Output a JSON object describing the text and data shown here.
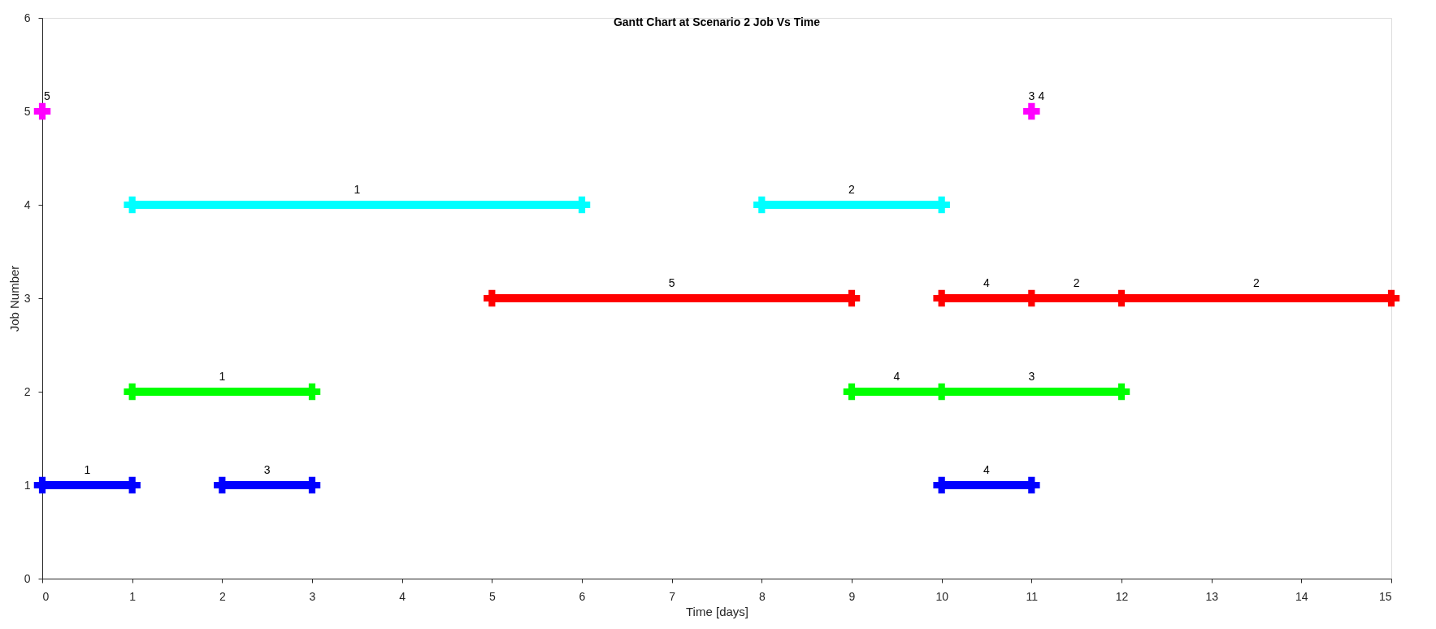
{
  "chart_data": {
    "type": "line",
    "title": "Gantt Chart at Scenario 2 Job Vs Time",
    "xlabel": "Time [days]",
    "ylabel": "Job Number",
    "xlim": [
      0,
      15
    ],
    "xticks": [
      0,
      1,
      2,
      3,
      4,
      5,
      6,
      7,
      8,
      9,
      10,
      11,
      12,
      13,
      14,
      15
    ],
    "ylim": [
      0,
      6
    ],
    "yticks": [
      0,
      1,
      2,
      3,
      4,
      5,
      6
    ],
    "grid": false,
    "marker": "cross",
    "line_style": "solid",
    "series": [
      {
        "color": "#0000ff",
        "x": [
          0,
          1
        ],
        "values": [
          1,
          1
        ]
      },
      {
        "color": "#0000ff",
        "x": [
          2,
          3
        ],
        "values": [
          1,
          1
        ]
      },
      {
        "color": "#0000ff",
        "x": [
          10,
          11
        ],
        "values": [
          1,
          1
        ]
      },
      {
        "color": "#00ff00",
        "x": [
          1,
          3
        ],
        "values": [
          2,
          2
        ]
      },
      {
        "color": "#00ff00",
        "x": [
          9,
          10,
          12
        ],
        "values": [
          2,
          2,
          2
        ]
      },
      {
        "color": "#ff0000",
        "x": [
          5,
          9
        ],
        "values": [
          3,
          3
        ]
      },
      {
        "color": "#ff0000",
        "x": [
          10,
          11,
          12,
          15
        ],
        "values": [
          3,
          3,
          3,
          3
        ]
      },
      {
        "color": "#00ffff",
        "x": [
          1,
          6
        ],
        "values": [
          4,
          4
        ]
      },
      {
        "color": "#00ffff",
        "x": [
          8,
          10
        ],
        "values": [
          4,
          4
        ]
      },
      {
        "type": "scatter",
        "color": "#ff00ff",
        "x": [
          0,
          11
        ],
        "values": [
          5,
          5
        ]
      }
    ],
    "annotations": [
      {
        "text": "1",
        "x": 0.5,
        "y": 1
      },
      {
        "text": "3",
        "x": 2.5,
        "y": 1
      },
      {
        "text": "4",
        "x": 10.5,
        "y": 1
      },
      {
        "text": "1",
        "x": 2,
        "y": 2
      },
      {
        "text": "4",
        "x": 9.5,
        "y": 2
      },
      {
        "text": "3",
        "x": 11,
        "y": 2
      },
      {
        "text": "5",
        "x": 7,
        "y": 3
      },
      {
        "text": "4",
        "x": 10.5,
        "y": 3
      },
      {
        "text": "2",
        "x": 11.5,
        "y": 3
      },
      {
        "text": "2",
        "x": 13.5,
        "y": 3
      },
      {
        "text": "1",
        "x": 3.5,
        "y": 4
      },
      {
        "text": "2",
        "x": 9,
        "y": 4
      },
      {
        "text": "5",
        "x": 0,
        "y": 5
      },
      {
        "text": "3",
        "x": 11,
        "y": 5
      },
      {
        "text": "4",
        "x": 11,
        "y": 5
      }
    ]
  }
}
